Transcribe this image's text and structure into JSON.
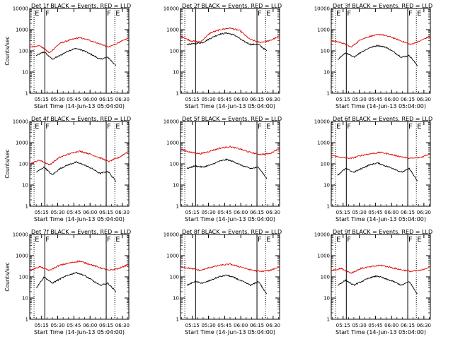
{
  "colors": {
    "events": "#000000",
    "lld": "#dd0000",
    "axes": "#000000"
  },
  "chart_data": [
    {
      "type": "line",
      "title": "Det 1f BLACK = Events, RED = LLD",
      "xlabel": "Start Time (14-Jun-13 05:04:00)",
      "ylabel": "Counts/sec",
      "yscale": "log",
      "ylim": [
        1,
        10000
      ],
      "xticks": [
        "05:15",
        "05:30",
        "05:45",
        "06:00",
        "06:15",
        "06:30"
      ],
      "yticks": [
        "1",
        "10",
        "100",
        "1000",
        "10000"
      ],
      "flags": [
        "E",
        "F",
        "F",
        "E"
      ],
      "dotted_lines": [
        4,
        79
      ],
      "solid_lines": [
        14,
        71
      ],
      "series": [
        {
          "name": "BLACK",
          "start": 6,
          "end": 80,
          "levels": [
            60,
            90,
            40,
            60,
            100,
            130,
            100,
            65,
            40,
            50,
            20
          ]
        },
        {
          "name": "RED",
          "start": 0,
          "end": 92,
          "levels": [
            150,
            180,
            80,
            220,
            320,
            420,
            320,
            220,
            150,
            250,
            400
          ]
        }
      ]
    },
    {
      "type": "line",
      "title": "Det 2f BLACK = Events, RED = LLD",
      "xlabel": "Start Time (14-Jun-13 05:04:00)",
      "ylabel": "",
      "yscale": "log",
      "ylim": [
        1,
        10000
      ],
      "xticks": [
        "05:15",
        "05:30",
        "05:45",
        "06:00",
        "06:15",
        "06:30"
      ],
      "yticks": [
        "1",
        "10",
        "100",
        "1000",
        "10000"
      ],
      "flags": [
        "",
        "",
        "F",
        "E"
      ],
      "dotted_lines": [
        4,
        79
      ],
      "solid_lines": [
        14,
        71
      ],
      "series": [
        {
          "name": "BLACK",
          "start": 6,
          "end": 80,
          "levels": [
            200,
            220,
            250,
            400,
            600,
            700,
            550,
            300,
            200,
            200,
            100
          ]
        },
        {
          "name": "RED",
          "start": 0,
          "end": 92,
          "levels": [
            500,
            300,
            260,
            700,
            1000,
            1200,
            900,
            350,
            250,
            300,
            500
          ]
        }
      ]
    },
    {
      "type": "line",
      "title": "Det 3f BLACK = Events, RED = LLD",
      "xlabel": "Start Time (14-Jun-13 05:04:00)",
      "ylabel": "",
      "yscale": "log",
      "ylim": [
        1,
        10000
      ],
      "xticks": [
        "05:15",
        "05:30",
        "05:45",
        "06:00",
        "06:15",
        "06:30"
      ],
      "yticks": [
        "1",
        "10",
        "100",
        "1000",
        "10000"
      ],
      "flags": [
        "E",
        "F",
        "F",
        "E"
      ],
      "dotted_lines": [
        4,
        79
      ],
      "solid_lines": [
        14,
        71
      ],
      "series": [
        {
          "name": "BLACK",
          "start": 6,
          "end": 80,
          "levels": [
            40,
            80,
            50,
            90,
            140,
            180,
            150,
            90,
            50,
            60,
            20
          ]
        },
        {
          "name": "RED",
          "start": 0,
          "end": 92,
          "levels": [
            300,
            250,
            150,
            350,
            500,
            600,
            450,
            300,
            200,
            300,
            500
          ]
        }
      ]
    },
    {
      "type": "line",
      "title": "Det 4f BLACK = Events, RED = LLD",
      "xlabel": "Start Time (14-Jun-13 05:04:00)",
      "ylabel": "Counts/sec",
      "yscale": "log",
      "ylim": [
        1,
        10000
      ],
      "xticks": [
        "05:15",
        "05:30",
        "05:45",
        "06:00",
        "06:15",
        "06:30"
      ],
      "yticks": [
        "1",
        "10",
        "100",
        "1000",
        "10000"
      ],
      "flags": [
        "E",
        "F",
        "F",
        "E"
      ],
      "dotted_lines": [
        4,
        79
      ],
      "solid_lines": [
        14,
        71
      ],
      "series": [
        {
          "name": "BLACK",
          "start": 6,
          "end": 80,
          "levels": [
            40,
            70,
            30,
            60,
            90,
            120,
            90,
            60,
            35,
            45,
            15
          ]
        },
        {
          "name": "RED",
          "start": 0,
          "end": 92,
          "levels": [
            100,
            150,
            90,
            200,
            300,
            400,
            300,
            200,
            130,
            200,
            400
          ]
        }
      ]
    },
    {
      "type": "line",
      "title": "Det 5f BLACK = Events, RED = LLD",
      "xlabel": "Start Time (14-Jun-13 05:04:00)",
      "ylabel": "",
      "yscale": "log",
      "ylim": [
        1,
        10000
      ],
      "xticks": [
        "05:15",
        "05:30",
        "05:45",
        "06:00",
        "06:15",
        "06:30"
      ],
      "yticks": [
        "1",
        "10",
        "100",
        "1000",
        "10000"
      ],
      "flags": [
        "",
        "",
        "F",
        "E"
      ],
      "dotted_lines": [
        4,
        79
      ],
      "solid_lines": [
        14,
        71
      ],
      "series": [
        {
          "name": "BLACK",
          "start": 6,
          "end": 80,
          "levels": [
            60,
            80,
            70,
            90,
            130,
            160,
            120,
            80,
            60,
            70,
            20
          ]
        },
        {
          "name": "RED",
          "start": 0,
          "end": 92,
          "levels": [
            500,
            350,
            300,
            400,
            550,
            650,
            500,
            350,
            280,
            300,
            550
          ]
        }
      ]
    },
    {
      "type": "line",
      "title": "Det 6f BLACK = Events, RED = LLD",
      "xlabel": "Start Time (14-Jun-13 05:04:00)",
      "ylabel": "",
      "yscale": "log",
      "ylim": [
        1,
        10000
      ],
      "xticks": [
        "05:15",
        "05:30",
        "05:45",
        "06:00",
        "06:15",
        "06:30"
      ],
      "yticks": [
        "1",
        "10",
        "100",
        "1000",
        "10000"
      ],
      "flags": [
        "E",
        "F",
        "F",
        "E"
      ],
      "dotted_lines": [
        4,
        79
      ],
      "solid_lines": [
        14,
        71
      ],
      "series": [
        {
          "name": "BLACK",
          "start": 6,
          "end": 80,
          "levels": [
            30,
            60,
            40,
            60,
            90,
            110,
            80,
            60,
            40,
            60,
            15
          ]
        },
        {
          "name": "RED",
          "start": 0,
          "end": 92,
          "levels": [
            250,
            200,
            180,
            250,
            300,
            350,
            280,
            220,
            180,
            200,
            300
          ]
        }
      ]
    },
    {
      "type": "line",
      "title": "Det 7f BLACK = Events, RED = LLD",
      "xlabel": "Start Time (14-Jun-13 05:04:00)",
      "ylabel": "Counts/sec",
      "yscale": "log",
      "ylim": [
        1,
        10000
      ],
      "xticks": [
        "05:15",
        "05:30",
        "05:45",
        "06:00",
        "06:15",
        "06:30"
      ],
      "yticks": [
        "1",
        "10",
        "100",
        "1000",
        "10000"
      ],
      "flags": [
        "E",
        "F",
        "F",
        "E"
      ],
      "dotted_lines": [
        4,
        79
      ],
      "solid_lines": [
        14,
        71
      ],
      "series": [
        {
          "name": "BLACK",
          "start": 6,
          "end": 80,
          "levels": [
            30,
            100,
            50,
            80,
            120,
            160,
            120,
            70,
            40,
            50,
            20
          ]
        },
        {
          "name": "RED",
          "start": 0,
          "end": 92,
          "levels": [
            200,
            300,
            200,
            350,
            450,
            550,
            400,
            280,
            200,
            250,
            400
          ]
        }
      ]
    },
    {
      "type": "line",
      "title": "Det 8f BLACK = Events, RED = LLD",
      "xlabel": "Start Time (14-Jun-13 05:04:00)",
      "ylabel": "",
      "yscale": "log",
      "ylim": [
        1,
        10000
      ],
      "xticks": [
        "05:15",
        "05:30",
        "05:45",
        "06:00",
        "06:15",
        "06:30"
      ],
      "yticks": [
        "1",
        "10",
        "100",
        "1000",
        "10000"
      ],
      "flags": [
        "",
        "",
        "F",
        "E"
      ],
      "dotted_lines": [
        4,
        79
      ],
      "solid_lines": [
        14,
        71
      ],
      "series": [
        {
          "name": "BLACK",
          "start": 6,
          "end": 80,
          "levels": [
            40,
            60,
            50,
            70,
            100,
            120,
            90,
            60,
            40,
            60,
            15
          ]
        },
        {
          "name": "RED",
          "start": 0,
          "end": 92,
          "levels": [
            300,
            250,
            200,
            280,
            350,
            400,
            300,
            220,
            180,
            200,
            300
          ]
        }
      ]
    },
    {
      "type": "line",
      "title": "Det 9f BLACK = Events, RED = LLD",
      "xlabel": "Start Time (14-Jun-13 05:04:00)",
      "ylabel": "",
      "yscale": "log",
      "ylim": [
        1,
        10000
      ],
      "xticks": [
        "05:15",
        "05:30",
        "05:45",
        "06:00",
        "06:15",
        "06:30"
      ],
      "yticks": [
        "1",
        "10",
        "100",
        "1000",
        "10000"
      ],
      "flags": [
        "E",
        "F",
        "F",
        "E"
      ],
      "dotted_lines": [
        4,
        79
      ],
      "solid_lines": [
        14,
        71
      ],
      "series": [
        {
          "name": "BLACK",
          "start": 6,
          "end": 80,
          "levels": [
            40,
            70,
            40,
            60,
            90,
            110,
            80,
            60,
            40,
            60,
            15
          ]
        },
        {
          "name": "RED",
          "start": 0,
          "end": 92,
          "levels": [
            200,
            250,
            150,
            250,
            300,
            350,
            280,
            220,
            180,
            200,
            300
          ]
        }
      ]
    }
  ]
}
